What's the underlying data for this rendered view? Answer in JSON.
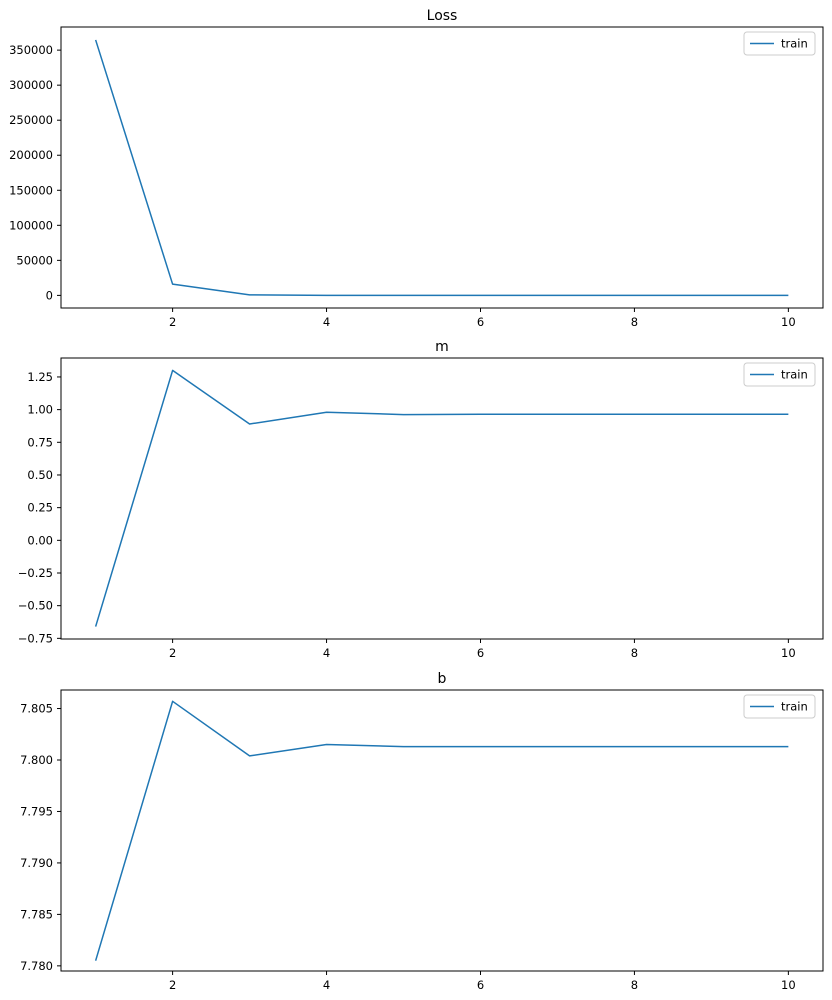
{
  "colors": {
    "series": "#1f77b4",
    "axes": "#000000",
    "legend_border": "#cccccc",
    "background": "#ffffff"
  },
  "chart_data": [
    {
      "type": "line",
      "title": "Loss",
      "xlabel": "",
      "ylabel": "",
      "xlim": [
        0.55,
        10.45
      ],
      "ylim": [
        -18000,
        383000
      ],
      "xticks": [
        2,
        4,
        6,
        8,
        10
      ],
      "xtick_labels": [
        "2",
        "4",
        "6",
        "8",
        "10"
      ],
      "yticks": [
        0,
        50000,
        100000,
        150000,
        200000,
        250000,
        300000,
        350000
      ],
      "ytick_labels": [
        "0",
        "50000",
        "100000",
        "150000",
        "200000",
        "250000",
        "300000",
        "350000"
      ],
      "grid": false,
      "legend_position": "upper right",
      "x": [
        1,
        2,
        3,
        4,
        5,
        6,
        7,
        8,
        9,
        10
      ],
      "series": [
        {
          "name": "train",
          "values": [
            364500,
            16000,
            700,
            50,
            5,
            1,
            0.5,
            0.5,
            0.5,
            0.5
          ]
        }
      ]
    },
    {
      "type": "line",
      "title": "m",
      "xlabel": "",
      "ylabel": "",
      "xlim": [
        0.55,
        10.45
      ],
      "ylim": [
        -0.755,
        1.395
      ],
      "xticks": [
        2,
        4,
        6,
        8,
        10
      ],
      "xtick_labels": [
        "2",
        "4",
        "6",
        "8",
        "10"
      ],
      "yticks": [
        -0.75,
        -0.5,
        -0.25,
        0.0,
        0.25,
        0.5,
        0.75,
        1.0,
        1.25
      ],
      "ytick_labels": [
        "−0.75",
        "−0.50",
        "−0.25",
        "0.00",
        "0.25",
        "0.50",
        "0.75",
        "1.00",
        "1.25"
      ],
      "grid": false,
      "legend_position": "upper right",
      "x": [
        1,
        2,
        3,
        4,
        5,
        6,
        7,
        8,
        9,
        10
      ],
      "series": [
        {
          "name": "train",
          "values": [
            -0.66,
            1.3,
            0.89,
            0.98,
            0.962,
            0.965,
            0.965,
            0.965,
            0.965,
            0.965
          ]
        }
      ]
    },
    {
      "type": "line",
      "title": "b",
      "xlabel": "",
      "ylabel": "",
      "xlim": [
        0.55,
        10.45
      ],
      "ylim": [
        7.7795,
        7.8068
      ],
      "xticks": [
        2,
        4,
        6,
        8,
        10
      ],
      "xtick_labels": [
        "2",
        "4",
        "6",
        "8",
        "10"
      ],
      "yticks": [
        7.78,
        7.785,
        7.79,
        7.795,
        7.8,
        7.805
      ],
      "ytick_labels": [
        "7.780",
        "7.785",
        "7.790",
        "7.795",
        "7.800",
        "7.805"
      ],
      "grid": false,
      "legend_position": "upper right",
      "x": [
        1,
        2,
        3,
        4,
        5,
        6,
        7,
        8,
        9,
        10
      ],
      "series": [
        {
          "name": "train",
          "values": [
            7.7805,
            7.8057,
            7.8004,
            7.8015,
            7.8013,
            7.8013,
            7.8013,
            7.8013,
            7.8013,
            7.8013
          ]
        }
      ]
    }
  ]
}
